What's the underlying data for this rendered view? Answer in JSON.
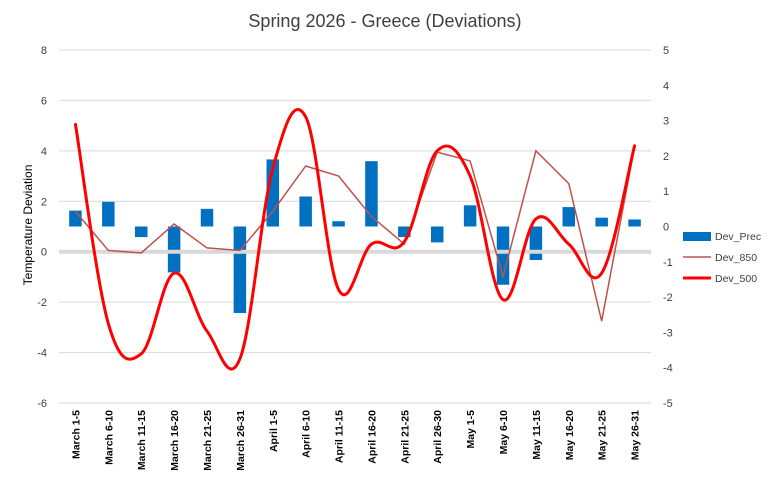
{
  "chart_data": {
    "type": "bar",
    "title": "Spring 2026 - Greece (Deviations)",
    "ylabel": "Temperature Deviation",
    "ylim": [
      -6,
      8
    ],
    "y_ticks": [
      -6,
      -4,
      -2,
      0,
      2,
      4,
      6,
      8
    ],
    "y2lim": [
      -5,
      5
    ],
    "y2_ticks": [
      -5,
      -4,
      -3,
      -2,
      -1,
      0,
      1,
      2,
      3,
      4,
      5
    ],
    "categories": [
      "March 1-5",
      "March 6-10",
      "March 11-15",
      "March 16-20",
      "March 21-25",
      "March 26-31",
      "April 1-5",
      "April 6-10",
      "April 11-15",
      "April 16-20",
      "April 21-25",
      "April 26-30",
      "May 1-5",
      "May 6-10",
      "May 11-15",
      "May 16-20",
      "May 21-25",
      "May 26-31"
    ],
    "series": [
      {
        "name": "Dev_Prec",
        "type": "bar",
        "axis": "secondary",
        "color": "#0070c0",
        "values": [
          0.45,
          0.7,
          -0.3,
          -1.3,
          0.5,
          -2.45,
          1.9,
          0.85,
          0.15,
          1.85,
          -0.3,
          -0.45,
          0.6,
          -1.65,
          -0.95,
          0.55,
          0.25,
          0.2
        ]
      },
      {
        "name": "Dev_850",
        "type": "line",
        "axis": "primary",
        "color": "#c0504d",
        "values": [
          1.6,
          0.05,
          -0.05,
          1.1,
          0.15,
          0.05,
          1.6,
          3.4,
          3.0,
          1.4,
          0.3,
          3.95,
          3.6,
          -1.0,
          4.0,
          2.7,
          -2.75,
          4.15
        ]
      },
      {
        "name": "Dev_500",
        "type": "smooth-line",
        "axis": "primary",
        "color": "#ff0000",
        "values": [
          5.05,
          -2.85,
          -4.05,
          -0.85,
          -3.15,
          -4.25,
          3.3,
          5.35,
          -1.5,
          0.3,
          0.4,
          4.0,
          3.0,
          -1.9,
          1.3,
          0.3,
          -0.85,
          4.2
        ]
      }
    ]
  }
}
